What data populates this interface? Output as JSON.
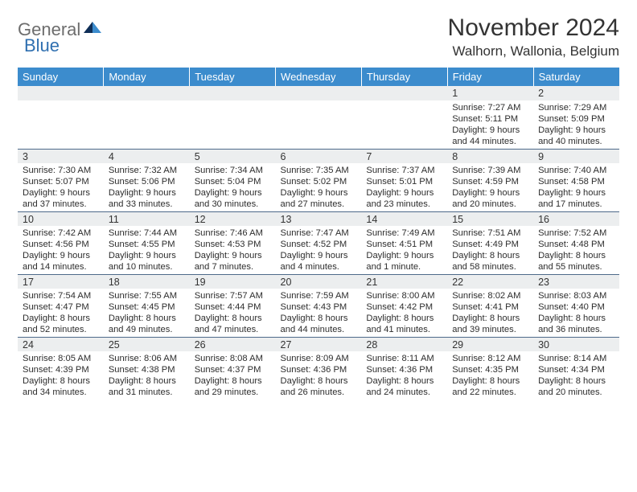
{
  "logo": {
    "text1": "General",
    "text2": "Blue"
  },
  "title": "November 2024",
  "location": "Walhorn, Wallonia, Belgium",
  "colors": {
    "header_bg": "#3c8ccd",
    "header_text": "#ffffff",
    "daynum_bg": "#eceeef",
    "daynum_border": "#4e6a8a",
    "body_text": "#2d2d2d",
    "logo_gray": "#6d6d6d",
    "logo_blue": "#2f6fb0"
  },
  "weekdays": [
    "Sunday",
    "Monday",
    "Tuesday",
    "Wednesday",
    "Thursday",
    "Friday",
    "Saturday"
  ],
  "weeks": [
    [
      null,
      null,
      null,
      null,
      null,
      {
        "n": "1",
        "sr": "Sunrise: 7:27 AM",
        "ss": "Sunset: 5:11 PM",
        "d1": "Daylight: 9 hours",
        "d2": "and 44 minutes."
      },
      {
        "n": "2",
        "sr": "Sunrise: 7:29 AM",
        "ss": "Sunset: 5:09 PM",
        "d1": "Daylight: 9 hours",
        "d2": "and 40 minutes."
      }
    ],
    [
      {
        "n": "3",
        "sr": "Sunrise: 7:30 AM",
        "ss": "Sunset: 5:07 PM",
        "d1": "Daylight: 9 hours",
        "d2": "and 37 minutes."
      },
      {
        "n": "4",
        "sr": "Sunrise: 7:32 AM",
        "ss": "Sunset: 5:06 PM",
        "d1": "Daylight: 9 hours",
        "d2": "and 33 minutes."
      },
      {
        "n": "5",
        "sr": "Sunrise: 7:34 AM",
        "ss": "Sunset: 5:04 PM",
        "d1": "Daylight: 9 hours",
        "d2": "and 30 minutes."
      },
      {
        "n": "6",
        "sr": "Sunrise: 7:35 AM",
        "ss": "Sunset: 5:02 PM",
        "d1": "Daylight: 9 hours",
        "d2": "and 27 minutes."
      },
      {
        "n": "7",
        "sr": "Sunrise: 7:37 AM",
        "ss": "Sunset: 5:01 PM",
        "d1": "Daylight: 9 hours",
        "d2": "and 23 minutes."
      },
      {
        "n": "8",
        "sr": "Sunrise: 7:39 AM",
        "ss": "Sunset: 4:59 PM",
        "d1": "Daylight: 9 hours",
        "d2": "and 20 minutes."
      },
      {
        "n": "9",
        "sr": "Sunrise: 7:40 AM",
        "ss": "Sunset: 4:58 PM",
        "d1": "Daylight: 9 hours",
        "d2": "and 17 minutes."
      }
    ],
    [
      {
        "n": "10",
        "sr": "Sunrise: 7:42 AM",
        "ss": "Sunset: 4:56 PM",
        "d1": "Daylight: 9 hours",
        "d2": "and 14 minutes."
      },
      {
        "n": "11",
        "sr": "Sunrise: 7:44 AM",
        "ss": "Sunset: 4:55 PM",
        "d1": "Daylight: 9 hours",
        "d2": "and 10 minutes."
      },
      {
        "n": "12",
        "sr": "Sunrise: 7:46 AM",
        "ss": "Sunset: 4:53 PM",
        "d1": "Daylight: 9 hours",
        "d2": "and 7 minutes."
      },
      {
        "n": "13",
        "sr": "Sunrise: 7:47 AM",
        "ss": "Sunset: 4:52 PM",
        "d1": "Daylight: 9 hours",
        "d2": "and 4 minutes."
      },
      {
        "n": "14",
        "sr": "Sunrise: 7:49 AM",
        "ss": "Sunset: 4:51 PM",
        "d1": "Daylight: 9 hours",
        "d2": "and 1 minute."
      },
      {
        "n": "15",
        "sr": "Sunrise: 7:51 AM",
        "ss": "Sunset: 4:49 PM",
        "d1": "Daylight: 8 hours",
        "d2": "and 58 minutes."
      },
      {
        "n": "16",
        "sr": "Sunrise: 7:52 AM",
        "ss": "Sunset: 4:48 PM",
        "d1": "Daylight: 8 hours",
        "d2": "and 55 minutes."
      }
    ],
    [
      {
        "n": "17",
        "sr": "Sunrise: 7:54 AM",
        "ss": "Sunset: 4:47 PM",
        "d1": "Daylight: 8 hours",
        "d2": "and 52 minutes."
      },
      {
        "n": "18",
        "sr": "Sunrise: 7:55 AM",
        "ss": "Sunset: 4:45 PM",
        "d1": "Daylight: 8 hours",
        "d2": "and 49 minutes."
      },
      {
        "n": "19",
        "sr": "Sunrise: 7:57 AM",
        "ss": "Sunset: 4:44 PM",
        "d1": "Daylight: 8 hours",
        "d2": "and 47 minutes."
      },
      {
        "n": "20",
        "sr": "Sunrise: 7:59 AM",
        "ss": "Sunset: 4:43 PM",
        "d1": "Daylight: 8 hours",
        "d2": "and 44 minutes."
      },
      {
        "n": "21",
        "sr": "Sunrise: 8:00 AM",
        "ss": "Sunset: 4:42 PM",
        "d1": "Daylight: 8 hours",
        "d2": "and 41 minutes."
      },
      {
        "n": "22",
        "sr": "Sunrise: 8:02 AM",
        "ss": "Sunset: 4:41 PM",
        "d1": "Daylight: 8 hours",
        "d2": "and 39 minutes."
      },
      {
        "n": "23",
        "sr": "Sunrise: 8:03 AM",
        "ss": "Sunset: 4:40 PM",
        "d1": "Daylight: 8 hours",
        "d2": "and 36 minutes."
      }
    ],
    [
      {
        "n": "24",
        "sr": "Sunrise: 8:05 AM",
        "ss": "Sunset: 4:39 PM",
        "d1": "Daylight: 8 hours",
        "d2": "and 34 minutes."
      },
      {
        "n": "25",
        "sr": "Sunrise: 8:06 AM",
        "ss": "Sunset: 4:38 PM",
        "d1": "Daylight: 8 hours",
        "d2": "and 31 minutes."
      },
      {
        "n": "26",
        "sr": "Sunrise: 8:08 AM",
        "ss": "Sunset: 4:37 PM",
        "d1": "Daylight: 8 hours",
        "d2": "and 29 minutes."
      },
      {
        "n": "27",
        "sr": "Sunrise: 8:09 AM",
        "ss": "Sunset: 4:36 PM",
        "d1": "Daylight: 8 hours",
        "d2": "and 26 minutes."
      },
      {
        "n": "28",
        "sr": "Sunrise: 8:11 AM",
        "ss": "Sunset: 4:36 PM",
        "d1": "Daylight: 8 hours",
        "d2": "and 24 minutes."
      },
      {
        "n": "29",
        "sr": "Sunrise: 8:12 AM",
        "ss": "Sunset: 4:35 PM",
        "d1": "Daylight: 8 hours",
        "d2": "and 22 minutes."
      },
      {
        "n": "30",
        "sr": "Sunrise: 8:14 AM",
        "ss": "Sunset: 4:34 PM",
        "d1": "Daylight: 8 hours",
        "d2": "and 20 minutes."
      }
    ]
  ]
}
